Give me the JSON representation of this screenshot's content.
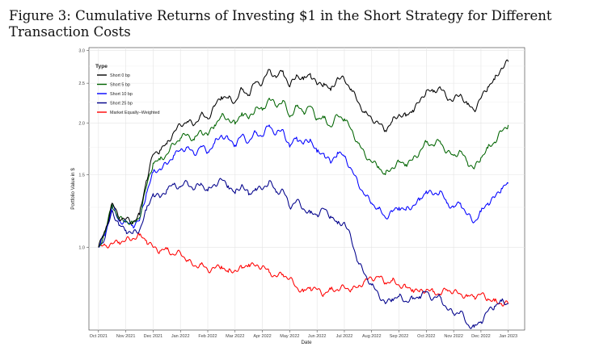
{
  "caption": "Figure 3: Cumulative Returns of Investing $1 in the Short Strategy for Different Transaction Costs",
  "chart_data": {
    "type": "line",
    "title": "",
    "xlabel": "Date",
    "ylabel": "Portfolio Value in $",
    "y_scale": "log",
    "ylim": [
      0.63,
      3.05
    ],
    "y_ticks": [
      1.0,
      1.5,
      2.0,
      2.5,
      3.0
    ],
    "y_tick_labels": [
      "1.0",
      "1.5",
      "2.0",
      "2.5",
      "3.0"
    ],
    "xlim": [
      -0.35,
      15.6
    ],
    "x_ticks": [
      0,
      1,
      2,
      3,
      4,
      5,
      6,
      7,
      8,
      9,
      10,
      11,
      12,
      13,
      14,
      15
    ],
    "x_tick_labels": [
      "Oct 2021",
      "Nov 2021",
      "Dec 2021",
      "Jan 2022",
      "Feb 2022",
      "Mar 2022",
      "Apr 2022",
      "May 2022",
      "Jun 2022",
      "Jul 2022",
      "Aug 2022",
      "Sep 2022",
      "Oct 2022",
      "Nov 2022",
      "Dec 2022",
      "Jan 2023"
    ],
    "grid": true,
    "legend": {
      "title": "Type",
      "position": "top-left",
      "entries": [
        "Short 0 bp",
        "Short 5 bp",
        "Short 10 bp",
        "Short 25 bp",
        "Market Equally−Weighted"
      ]
    },
    "series": [
      {
        "name": "Short 0 bp",
        "color": "#000000",
        "x": [
          0,
          0.25,
          0.5,
          0.75,
          1.0,
          1.25,
          1.5,
          1.75,
          2.0,
          2.25,
          2.5,
          2.75,
          3.0,
          3.25,
          3.5,
          3.75,
          4.0,
          4.25,
          4.5,
          4.75,
          5.0,
          5.25,
          5.5,
          5.75,
          6.0,
          6.25,
          6.5,
          6.75,
          7.0,
          7.25,
          7.5,
          7.75,
          8.0,
          8.25,
          8.5,
          8.75,
          9.0,
          9.25,
          9.5,
          9.75,
          10.0,
          10.25,
          10.5,
          10.75,
          11.0,
          11.25,
          11.5,
          11.75,
          12.0,
          12.25,
          12.5,
          12.75,
          13.0,
          13.25,
          13.5,
          13.75,
          14.0,
          14.25,
          14.5,
          14.75,
          15.0
        ],
        "values": [
          1.0,
          1.1,
          1.28,
          1.18,
          1.17,
          1.15,
          1.2,
          1.45,
          1.68,
          1.72,
          1.78,
          1.9,
          1.98,
          2.02,
          1.98,
          2.1,
          2.05,
          2.2,
          2.32,
          2.3,
          2.25,
          2.42,
          2.34,
          2.52,
          2.5,
          2.7,
          2.58,
          2.68,
          2.45,
          2.62,
          2.55,
          2.64,
          2.48,
          2.5,
          2.4,
          2.58,
          2.55,
          2.42,
          2.25,
          2.12,
          2.05,
          2.0,
          1.92,
          2.02,
          2.1,
          2.08,
          2.15,
          2.25,
          2.4,
          2.38,
          2.45,
          2.3,
          2.28,
          2.35,
          2.22,
          2.15,
          2.3,
          2.45,
          2.55,
          2.72,
          2.82
        ]
      },
      {
        "name": "Short 5 bp",
        "color": "#006400",
        "x": [
          0,
          0.25,
          0.5,
          0.75,
          1.0,
          1.25,
          1.5,
          1.75,
          2.0,
          2.25,
          2.5,
          2.75,
          3.0,
          3.25,
          3.5,
          3.75,
          4.0,
          4.25,
          4.5,
          4.75,
          5.0,
          5.25,
          5.5,
          5.75,
          6.0,
          6.25,
          6.5,
          6.75,
          7.0,
          7.25,
          7.5,
          7.75,
          8.0,
          8.25,
          8.5,
          8.75,
          9.0,
          9.25,
          9.5,
          9.75,
          10.0,
          10.25,
          10.5,
          10.75,
          11.0,
          11.25,
          11.5,
          11.75,
          12.0,
          12.25,
          12.5,
          12.75,
          13.0,
          13.25,
          13.5,
          13.75,
          14.0,
          14.25,
          14.5,
          14.75,
          15.0
        ],
        "values": [
          1.0,
          1.09,
          1.27,
          1.17,
          1.16,
          1.14,
          1.18,
          1.4,
          1.6,
          1.63,
          1.68,
          1.78,
          1.84,
          1.88,
          1.82,
          1.92,
          1.87,
          1.98,
          2.08,
          2.05,
          1.99,
          2.12,
          2.05,
          2.18,
          2.15,
          2.3,
          2.2,
          2.27,
          2.07,
          2.2,
          2.13,
          2.2,
          2.05,
          2.06,
          1.96,
          2.09,
          2.05,
          1.93,
          1.79,
          1.68,
          1.61,
          1.57,
          1.5,
          1.56,
          1.61,
          1.59,
          1.63,
          1.7,
          1.8,
          1.77,
          1.81,
          1.7,
          1.67,
          1.71,
          1.61,
          1.55,
          1.65,
          1.74,
          1.8,
          1.91,
          1.98
        ]
      },
      {
        "name": "Short 10 bp",
        "color": "#0000ff",
        "x": [
          0,
          0.25,
          0.5,
          0.75,
          1.0,
          1.25,
          1.5,
          1.75,
          2.0,
          2.25,
          2.5,
          2.75,
          3.0,
          3.25,
          3.5,
          3.75,
          4.0,
          4.25,
          4.5,
          4.75,
          5.0,
          5.25,
          5.5,
          5.75,
          6.0,
          6.25,
          6.5,
          6.75,
          7.0,
          7.25,
          7.5,
          7.75,
          8.0,
          8.25,
          8.5,
          8.75,
          9.0,
          9.25,
          9.5,
          9.75,
          10.0,
          10.25,
          10.5,
          10.75,
          11.0,
          11.25,
          11.5,
          11.75,
          12.0,
          12.25,
          12.5,
          12.75,
          13.0,
          13.25,
          13.5,
          13.75,
          14.0,
          14.25,
          14.5,
          14.75,
          15.0
        ],
        "values": [
          1.0,
          1.08,
          1.26,
          1.16,
          1.15,
          1.13,
          1.16,
          1.35,
          1.52,
          1.55,
          1.59,
          1.67,
          1.72,
          1.75,
          1.68,
          1.76,
          1.7,
          1.79,
          1.87,
          1.83,
          1.77,
          1.87,
          1.8,
          1.9,
          1.86,
          1.98,
          1.88,
          1.93,
          1.75,
          1.85,
          1.78,
          1.83,
          1.7,
          1.69,
          1.6,
          1.7,
          1.66,
          1.55,
          1.43,
          1.34,
          1.28,
          1.24,
          1.18,
          1.22,
          1.25,
          1.23,
          1.26,
          1.3,
          1.37,
          1.34,
          1.37,
          1.28,
          1.25,
          1.28,
          1.2,
          1.15,
          1.22,
          1.28,
          1.32,
          1.39,
          1.43
        ]
      },
      {
        "name": "Short 25 bp",
        "color": "#00008b",
        "x": [
          0,
          0.25,
          0.5,
          0.75,
          1.0,
          1.25,
          1.5,
          1.75,
          2.0,
          2.25,
          2.5,
          2.75,
          3.0,
          3.25,
          3.5,
          3.75,
          4.0,
          4.25,
          4.5,
          4.75,
          5.0,
          5.25,
          5.5,
          5.75,
          6.0,
          6.25,
          6.5,
          6.75,
          7.0,
          7.25,
          7.5,
          7.75,
          8.0,
          8.25,
          8.5,
          8.75,
          9.0,
          9.25,
          9.5,
          9.75,
          10.0,
          10.25,
          10.5,
          10.75,
          11.0,
          11.25,
          11.5,
          11.75,
          12.0,
          12.25,
          12.5,
          12.75,
          13.0,
          13.25,
          13.5,
          13.75,
          14.0,
          14.25,
          14.5,
          14.75,
          15.0
        ],
        "values": [
          1.0,
          1.06,
          1.23,
          1.13,
          1.1,
          1.08,
          1.1,
          1.23,
          1.35,
          1.32,
          1.38,
          1.42,
          1.4,
          1.44,
          1.38,
          1.43,
          1.37,
          1.42,
          1.46,
          1.41,
          1.35,
          1.42,
          1.34,
          1.39,
          1.38,
          1.45,
          1.36,
          1.38,
          1.25,
          1.3,
          1.24,
          1.21,
          1.2,
          1.24,
          1.19,
          1.14,
          1.15,
          1.05,
          0.92,
          0.86,
          0.81,
          0.77,
          0.73,
          0.75,
          0.76,
          0.74,
          0.75,
          0.76,
          0.78,
          0.75,
          0.76,
          0.71,
          0.69,
          0.7,
          0.65,
          0.64,
          0.66,
          0.7,
          0.72,
          0.74,
          0.73
        ]
      },
      {
        "name": "Market Equally−Weighted",
        "color": "#ff0000",
        "x": [
          0,
          0.25,
          0.5,
          0.75,
          1.0,
          1.25,
          1.5,
          1.75,
          2.0,
          2.25,
          2.5,
          2.75,
          3.0,
          3.25,
          3.5,
          3.75,
          4.0,
          4.25,
          4.5,
          4.75,
          5.0,
          5.25,
          5.5,
          5.75,
          6.0,
          6.25,
          6.5,
          6.75,
          7.0,
          7.25,
          7.5,
          7.75,
          8.0,
          8.25,
          8.5,
          8.75,
          9.0,
          9.25,
          9.5,
          9.75,
          10.0,
          10.25,
          10.5,
          10.75,
          11.0,
          11.25,
          11.5,
          11.75,
          12.0,
          12.25,
          12.5,
          12.75,
          13.0,
          13.25,
          13.5,
          13.75,
          14.0,
          14.25,
          14.5,
          14.75,
          15.0
        ],
        "values": [
          1.0,
          1.01,
          1.02,
          1.03,
          1.04,
          1.05,
          1.07,
          1.04,
          1.0,
          0.98,
          0.99,
          0.96,
          0.97,
          0.93,
          0.9,
          0.91,
          0.88,
          0.89,
          0.9,
          0.87,
          0.88,
          0.89,
          0.91,
          0.9,
          0.9,
          0.87,
          0.85,
          0.86,
          0.84,
          0.8,
          0.78,
          0.8,
          0.79,
          0.77,
          0.79,
          0.79,
          0.8,
          0.79,
          0.8,
          0.83,
          0.84,
          0.85,
          0.82,
          0.83,
          0.81,
          0.8,
          0.79,
          0.78,
          0.79,
          0.78,
          0.77,
          0.79,
          0.78,
          0.77,
          0.76,
          0.76,
          0.77,
          0.75,
          0.74,
          0.73,
          0.73
        ]
      }
    ]
  }
}
